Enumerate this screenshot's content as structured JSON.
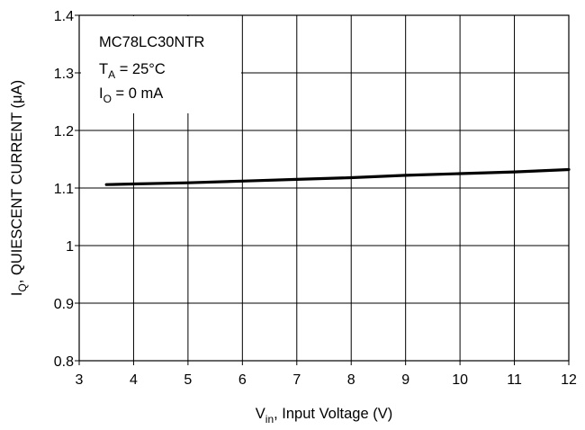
{
  "chart_data": {
    "type": "line",
    "title": "",
    "xlabel": {
      "main": "V",
      "sub": "in",
      "rest": ", Input Voltage (V)"
    },
    "ylabel": {
      "main": "I",
      "sub": "Q",
      "rest": ", QUIESCENT CURRENT (",
      "mu": "μ",
      "unit": "A)"
    },
    "xlim": [
      3,
      12
    ],
    "ylim": [
      0.8,
      1.4
    ],
    "x_ticks": [
      3,
      4,
      5,
      6,
      7,
      8,
      9,
      10,
      11,
      12
    ],
    "x_tick_labels": [
      "3",
      "4",
      "5",
      "6",
      "7",
      "8",
      "9",
      "10",
      "11",
      "12"
    ],
    "y_ticks": [
      0.8,
      0.9,
      1.0,
      1.1,
      1.2,
      1.3,
      1.4
    ],
    "y_tick_labels": [
      "0.8",
      "0.9",
      "1",
      "1.1",
      "1.2",
      "1.3",
      "1.4"
    ],
    "grid": true,
    "annotation": {
      "line1": "MC78LC30NTR",
      "line2": {
        "main": "T",
        "sub": "A",
        "rest": " = 25°C"
      },
      "line3": {
        "main": "I",
        "sub": "O",
        "rest": " = 0 mA"
      }
    },
    "series": [
      {
        "color": "#000000",
        "x": [
          3.5,
          4,
          5,
          6,
          7,
          8,
          9,
          10,
          11,
          12
        ],
        "y": [
          1.106,
          1.107,
          1.109,
          1.112,
          1.115,
          1.118,
          1.122,
          1.125,
          1.128,
          1.132
        ]
      }
    ]
  }
}
